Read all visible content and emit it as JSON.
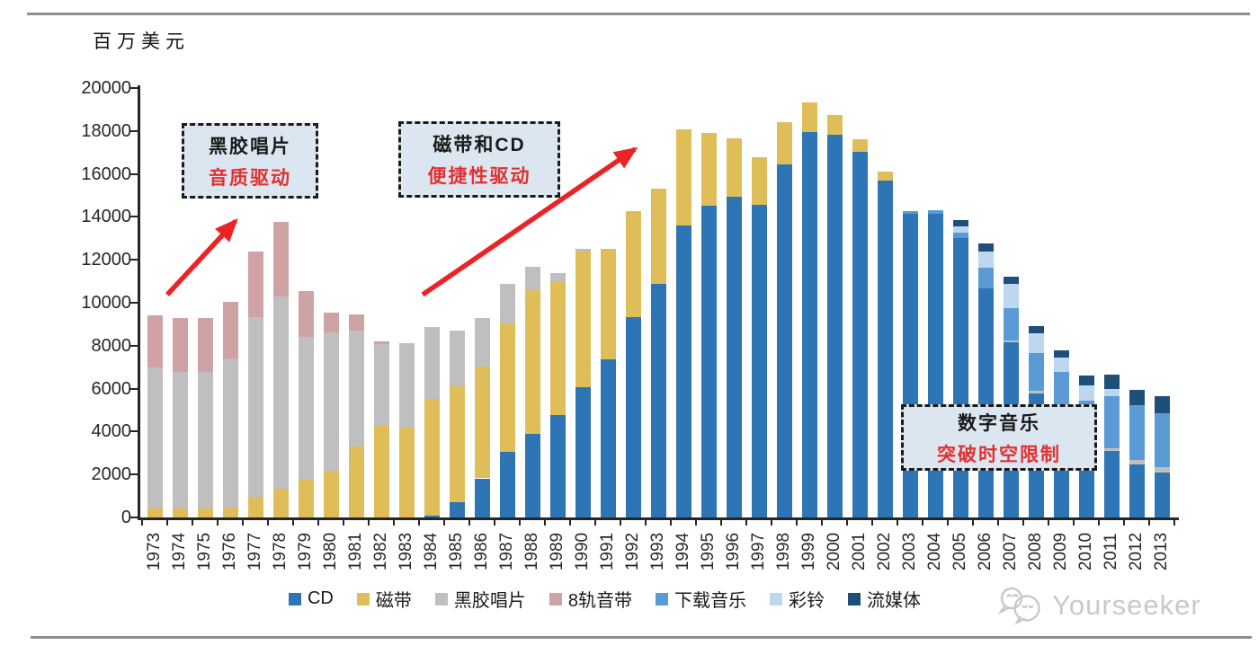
{
  "colors": {
    "annotation_red": "#E03131",
    "arrow_red": "#EC2227",
    "box_fill": "#DCE6F1",
    "rule_gray": "#8E8E8E",
    "watermark_gray": "#C9C9C9"
  },
  "watermark": {
    "text": "Yourseeker",
    "icon": "wechat-bubbles-icon"
  },
  "annotations": {
    "vinyl_era": {
      "line1": "黑胶唱片",
      "line2": "音质驱动"
    },
    "cd_era": {
      "line1": "磁带和CD",
      "line2": "便捷性驱动"
    },
    "digital_era": {
      "line1": "数字音乐",
      "line2": "突破时空限制"
    }
  },
  "chart_data": {
    "type": "bar",
    "stacked": true,
    "unit_label": "百万美元",
    "ylim": [
      0,
      20000
    ],
    "ytick_step": 2000,
    "grid": false,
    "legend_position": "bottom",
    "x_label_rotation": -90,
    "categories": [
      "1973",
      "1974",
      "1975",
      "1976",
      "1977",
      "1978",
      "1979",
      "1980",
      "1981",
      "1982",
      "1983",
      "1984",
      "1985",
      "1986",
      "1987",
      "1988",
      "1989",
      "1990",
      "1991",
      "1992",
      "1993",
      "1994",
      "1995",
      "1996",
      "1997",
      "1998",
      "1999",
      "2000",
      "2001",
      "2002",
      "2003",
      "2004",
      "2005",
      "2006",
      "2007",
      "2008",
      "2009",
      "2010",
      "2011",
      "2012",
      "2013"
    ],
    "series": [
      {
        "name": "CD",
        "color": "#2E75B6",
        "values": [
          0,
          0,
          0,
          0,
          0,
          0,
          0,
          0,
          0,
          0,
          0,
          80,
          710,
          1820,
          3040,
          3910,
          4750,
          6070,
          7350,
          9340,
          10870,
          13580,
          14520,
          14930,
          14580,
          16440,
          17960,
          17830,
          17020,
          15700,
          14150,
          14150,
          13000,
          10660,
          8150,
          5790,
          5090,
          3150,
          3080,
          2480,
          2100
        ]
      },
      {
        "name": "磁带",
        "color": "#DFBE5A",
        "values": [
          430,
          430,
          430,
          440,
          920,
          1340,
          1750,
          2170,
          3290,
          4260,
          4190,
          5460,
          5390,
          5220,
          5980,
          6680,
          6220,
          6330,
          5150,
          4940,
          4450,
          4480,
          3400,
          2720,
          2200,
          1980,
          1390,
          910,
          600,
          390,
          0,
          0,
          0,
          0,
          0,
          0,
          0,
          0,
          0,
          0,
          0
        ]
      },
      {
        "name": "黑胶唱片",
        "color": "#BFBFBF",
        "values": [
          6540,
          6330,
          6330,
          6950,
          8420,
          8940,
          6680,
          6430,
          5430,
          3800,
          3920,
          3340,
          2620,
          2250,
          1850,
          1070,
          420,
          100,
          0,
          0,
          0,
          0,
          0,
          0,
          0,
          0,
          0,
          0,
          0,
          0,
          0,
          0,
          0,
          0,
          100,
          100,
          0,
          0,
          140,
          200,
          240
        ]
      },
      {
        "name": "8轨音带",
        "color": "#CFA3A3",
        "values": [
          2460,
          2530,
          2530,
          2640,
          3060,
          3470,
          2120,
          950,
          720,
          140,
          0,
          0,
          0,
          0,
          0,
          0,
          0,
          0,
          0,
          0,
          0,
          0,
          0,
          0,
          0,
          0,
          0,
          0,
          0,
          0,
          0,
          0,
          0,
          0,
          0,
          0,
          0,
          0,
          0,
          0,
          0
        ]
      },
      {
        "name": "下载音乐",
        "color": "#5B9BD5",
        "values": [
          0,
          0,
          0,
          0,
          0,
          0,
          0,
          0,
          0,
          0,
          0,
          0,
          0,
          0,
          0,
          0,
          0,
          0,
          0,
          0,
          0,
          0,
          0,
          0,
          0,
          0,
          0,
          0,
          0,
          0,
          100,
          180,
          280,
          980,
          1500,
          1780,
          1700,
          2290,
          2430,
          2530,
          2500
        ]
      },
      {
        "name": "彩铃",
        "color": "#BDD7EE",
        "values": [
          0,
          0,
          0,
          0,
          0,
          0,
          0,
          0,
          0,
          0,
          0,
          0,
          0,
          0,
          0,
          0,
          0,
          0,
          0,
          0,
          0,
          0,
          0,
          0,
          0,
          0,
          0,
          0,
          0,
          0,
          0,
          0,
          280,
          760,
          1115,
          905,
          640,
          700,
          350,
          0,
          0
        ]
      },
      {
        "name": "流媒体",
        "color": "#1F4E79",
        "values": [
          0,
          0,
          0,
          0,
          0,
          0,
          0,
          0,
          0,
          0,
          0,
          0,
          0,
          0,
          0,
          0,
          0,
          0,
          0,
          0,
          0,
          0,
          0,
          0,
          0,
          0,
          0,
          0,
          0,
          0,
          0,
          0,
          290,
          375,
          345,
          350,
          335,
          490,
          650,
          750,
          810
        ]
      }
    ]
  }
}
